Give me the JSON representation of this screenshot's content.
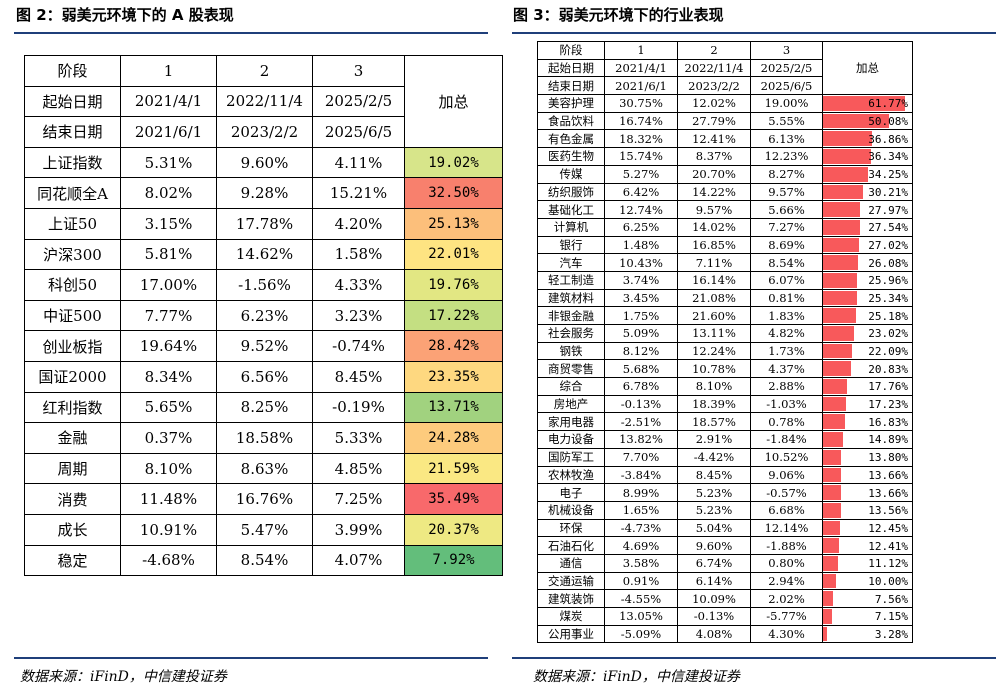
{
  "left": {
    "title": "图 2：弱美元环境下的 A 股表现",
    "header": {
      "row1_label": "阶段",
      "row2_label": "起始日期",
      "row3_label": "结束日期",
      "stages": [
        "1",
        "2",
        "3"
      ],
      "start_dates": [
        "2021/4/1",
        "2022/11/4",
        "2025/2/5"
      ],
      "end_dates": [
        "2021/6/1",
        "2023/2/2",
        "2025/6/5"
      ],
      "sum_label": "加总"
    },
    "rows": [
      {
        "name": "上证指数",
        "s1": "5.31%",
        "s2": "9.60%",
        "s3": "4.11%",
        "sum": "19.02%",
        "color": "#d7e58a"
      },
      {
        "name": "同花顺全A",
        "s1": "8.02%",
        "s2": "9.28%",
        "s3": "15.21%",
        "sum": "32.50%",
        "color": "#f8806d"
      },
      {
        "name": "上证50",
        "s1": "3.15%",
        "s2": "17.78%",
        "s3": "4.20%",
        "sum": "25.13%",
        "color": "#fcbf7b"
      },
      {
        "name": "沪深300",
        "s1": "5.81%",
        "s2": "14.62%",
        "s3": "1.58%",
        "sum": "22.01%",
        "color": "#fee482"
      },
      {
        "name": "科创50",
        "s1": "17.00%",
        "s2": "-1.56%",
        "s3": "4.33%",
        "sum": "19.76%",
        "color": "#e2e783"
      },
      {
        "name": "中证500",
        "s1": "7.77%",
        "s2": "6.23%",
        "s3": "3.23%",
        "sum": "17.22%",
        "color": "#c4df82"
      },
      {
        "name": "创业板指",
        "s1": "19.64%",
        "s2": "9.52%",
        "s3": "-0.74%",
        "sum": "28.42%",
        "color": "#fba276"
      },
      {
        "name": "国证2000",
        "s1": "8.34%",
        "s2": "6.56%",
        "s3": "8.45%",
        "sum": "23.35%",
        "color": "#fed880"
      },
      {
        "name": "红利指数",
        "s1": "5.65%",
        "s2": "8.25%",
        "s3": "-0.19%",
        "sum": "13.71%",
        "color": "#a1d27f"
      },
      {
        "name": "金融",
        "s1": "0.37%",
        "s2": "18.58%",
        "s3": "5.33%",
        "sum": "24.28%",
        "color": "#fdcb7d"
      },
      {
        "name": "周期",
        "s1": "8.10%",
        "s2": "8.63%",
        "s3": "4.85%",
        "sum": "21.59%",
        "color": "#fae883"
      },
      {
        "name": "消费",
        "s1": "11.48%",
        "s2": "16.76%",
        "s3": "7.25%",
        "sum": "35.49%",
        "color": "#f8696b"
      },
      {
        "name": "成长",
        "s1": "10.91%",
        "s2": "5.47%",
        "s3": "3.99%",
        "sum": "20.37%",
        "color": "#eee983"
      },
      {
        "name": "稳定",
        "s1": "-4.68%",
        "s2": "8.54%",
        "s3": "4.07%",
        "sum": "7.92%",
        "color": "#63be7b"
      }
    ],
    "source": "数据来源：iFinD，中信建投证券"
  },
  "right": {
    "title": "图 3：弱美元环境下的行业表现",
    "header": {
      "row1_label": "阶段",
      "row2_label": "起始日期",
      "row3_label": "结束日期",
      "stages": [
        "1",
        "2",
        "3"
      ],
      "start_dates": [
        "2021/4/1",
        "2022/11/4",
        "2025/2/5"
      ],
      "end_dates": [
        "2021/6/1",
        "2023/2/2",
        "2025/6/5"
      ],
      "sum_label": "加总"
    },
    "rows": [
      {
        "name": "美容护理",
        "s1": "30.75%",
        "s2": "12.02%",
        "s3": "19.00%",
        "sum": "61.77%",
        "value": 61.77
      },
      {
        "name": "食品饮料",
        "s1": "16.74%",
        "s2": "27.79%",
        "s3": "5.55%",
        "sum": "50.08%",
        "value": 50.08
      },
      {
        "name": "有色金属",
        "s1": "18.32%",
        "s2": "12.41%",
        "s3": "6.13%",
        "sum": "36.86%",
        "value": 36.86
      },
      {
        "name": "医药生物",
        "s1": "15.74%",
        "s2": "8.37%",
        "s3": "12.23%",
        "sum": "36.34%",
        "value": 36.34
      },
      {
        "name": "传媒",
        "s1": "5.27%",
        "s2": "20.70%",
        "s3": "8.27%",
        "sum": "34.25%",
        "value": 34.25
      },
      {
        "name": "纺织服饰",
        "s1": "6.42%",
        "s2": "14.22%",
        "s3": "9.57%",
        "sum": "30.21%",
        "value": 30.21
      },
      {
        "name": "基础化工",
        "s1": "12.74%",
        "s2": "9.57%",
        "s3": "5.66%",
        "sum": "27.97%",
        "value": 27.97
      },
      {
        "name": "计算机",
        "s1": "6.25%",
        "s2": "14.02%",
        "s3": "7.27%",
        "sum": "27.54%",
        "value": 27.54
      },
      {
        "name": "银行",
        "s1": "1.48%",
        "s2": "16.85%",
        "s3": "8.69%",
        "sum": "27.02%",
        "value": 27.02
      },
      {
        "name": "汽车",
        "s1": "10.43%",
        "s2": "7.11%",
        "s3": "8.54%",
        "sum": "26.08%",
        "value": 26.08
      },
      {
        "name": "轻工制造",
        "s1": "3.74%",
        "s2": "16.14%",
        "s3": "6.07%",
        "sum": "25.96%",
        "value": 25.96
      },
      {
        "name": "建筑材料",
        "s1": "3.45%",
        "s2": "21.08%",
        "s3": "0.81%",
        "sum": "25.34%",
        "value": 25.34
      },
      {
        "name": "非银金融",
        "s1": "1.75%",
        "s2": "21.60%",
        "s3": "1.83%",
        "sum": "25.18%",
        "value": 25.18
      },
      {
        "name": "社会服务",
        "s1": "5.09%",
        "s2": "13.11%",
        "s3": "4.82%",
        "sum": "23.02%",
        "value": 23.02
      },
      {
        "name": "钢铁",
        "s1": "8.12%",
        "s2": "12.24%",
        "s3": "1.73%",
        "sum": "22.09%",
        "value": 22.09
      },
      {
        "name": "商贸零售",
        "s1": "5.68%",
        "s2": "10.78%",
        "s3": "4.37%",
        "sum": "20.83%",
        "value": 20.83
      },
      {
        "name": "综合",
        "s1": "6.78%",
        "s2": "8.10%",
        "s3": "2.88%",
        "sum": "17.76%",
        "value": 17.76
      },
      {
        "name": "房地产",
        "s1": "-0.13%",
        "s2": "18.39%",
        "s3": "-1.03%",
        "sum": "17.23%",
        "value": 17.23
      },
      {
        "name": "家用电器",
        "s1": "-2.51%",
        "s2": "18.57%",
        "s3": "0.78%",
        "sum": "16.83%",
        "value": 16.83
      },
      {
        "name": "电力设备",
        "s1": "13.82%",
        "s2": "2.91%",
        "s3": "-1.84%",
        "sum": "14.89%",
        "value": 14.89
      },
      {
        "name": "国防军工",
        "s1": "7.70%",
        "s2": "-4.42%",
        "s3": "10.52%",
        "sum": "13.80%",
        "value": 13.8
      },
      {
        "name": "农林牧渔",
        "s1": "-3.84%",
        "s2": "8.45%",
        "s3": "9.06%",
        "sum": "13.66%",
        "value": 13.66
      },
      {
        "name": "电子",
        "s1": "8.99%",
        "s2": "5.23%",
        "s3": "-0.57%",
        "sum": "13.66%",
        "value": 13.66
      },
      {
        "name": "机械设备",
        "s1": "1.65%",
        "s2": "5.23%",
        "s3": "6.68%",
        "sum": "13.56%",
        "value": 13.56
      },
      {
        "name": "环保",
        "s1": "-4.73%",
        "s2": "5.04%",
        "s3": "12.14%",
        "sum": "12.45%",
        "value": 12.45
      },
      {
        "name": "石油石化",
        "s1": "4.69%",
        "s2": "9.60%",
        "s3": "-1.88%",
        "sum": "12.41%",
        "value": 12.41
      },
      {
        "name": "通信",
        "s1": "3.58%",
        "s2": "6.74%",
        "s3": "0.80%",
        "sum": "11.12%",
        "value": 11.12
      },
      {
        "name": "交通运输",
        "s1": "0.91%",
        "s2": "6.14%",
        "s3": "2.94%",
        "sum": "10.00%",
        "value": 10.0
      },
      {
        "name": "建筑装饰",
        "s1": "-4.55%",
        "s2": "10.09%",
        "s3": "2.02%",
        "sum": "7.56%",
        "value": 7.56
      },
      {
        "name": "煤炭",
        "s1": "13.05%",
        "s2": "-0.13%",
        "s3": "-5.77%",
        "sum": "7.15%",
        "value": 7.15
      },
      {
        "name": "公用事业",
        "s1": "-5.09%",
        "s2": "4.08%",
        "s3": "4.30%",
        "sum": "3.28%",
        "value": 3.28
      }
    ],
    "max_value": 61.77,
    "bar_color": "#f8595b",
    "source": "数据来源：iFinD，中信建投证券"
  }
}
